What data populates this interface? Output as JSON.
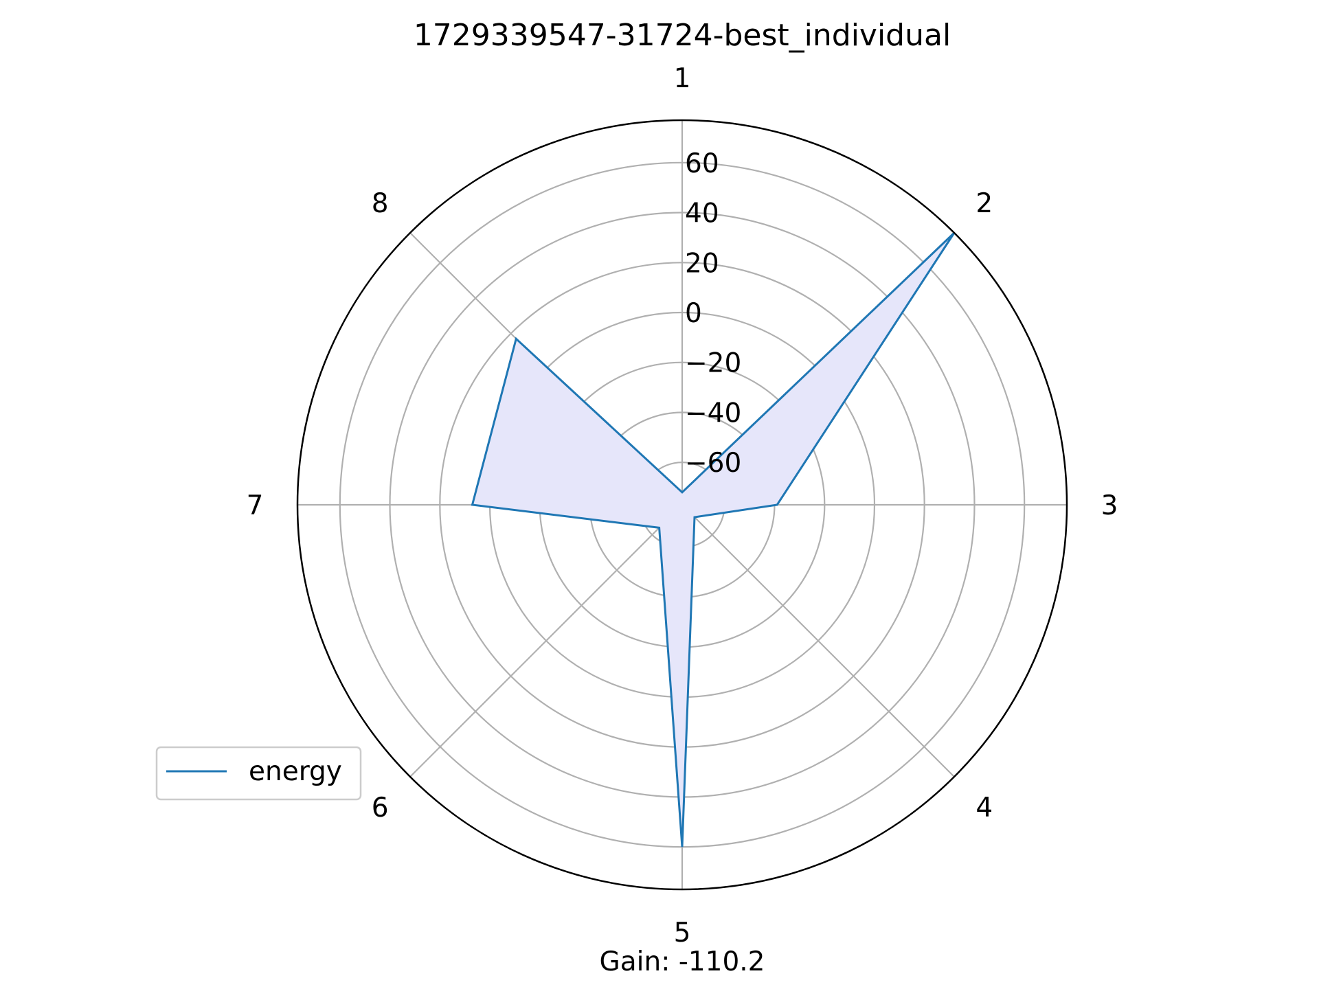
{
  "chart_data": {
    "type": "radar",
    "title": "1729339547-31724-best_individual",
    "categories": [
      "1",
      "2",
      "3",
      "4",
      "5",
      "6",
      "7",
      "8"
    ],
    "series": [
      {
        "name": "energy",
        "values": [
          -72,
          77,
          -39,
          -70,
          60,
          -64,
          7,
          17
        ],
        "line_color": "#1f77b4",
        "fill_color": "#e6e6fa"
      }
    ],
    "rlim": [
      -77,
      77
    ],
    "r_ticks": [
      -60,
      -40,
      -20,
      0,
      20,
      40,
      60
    ],
    "r_tick_labels": [
      "−60",
      "−40",
      "−20",
      "0",
      "20",
      "40",
      "60"
    ],
    "grid": true,
    "legend_position": "lower-left",
    "annotation": "Gain: -110.2"
  }
}
